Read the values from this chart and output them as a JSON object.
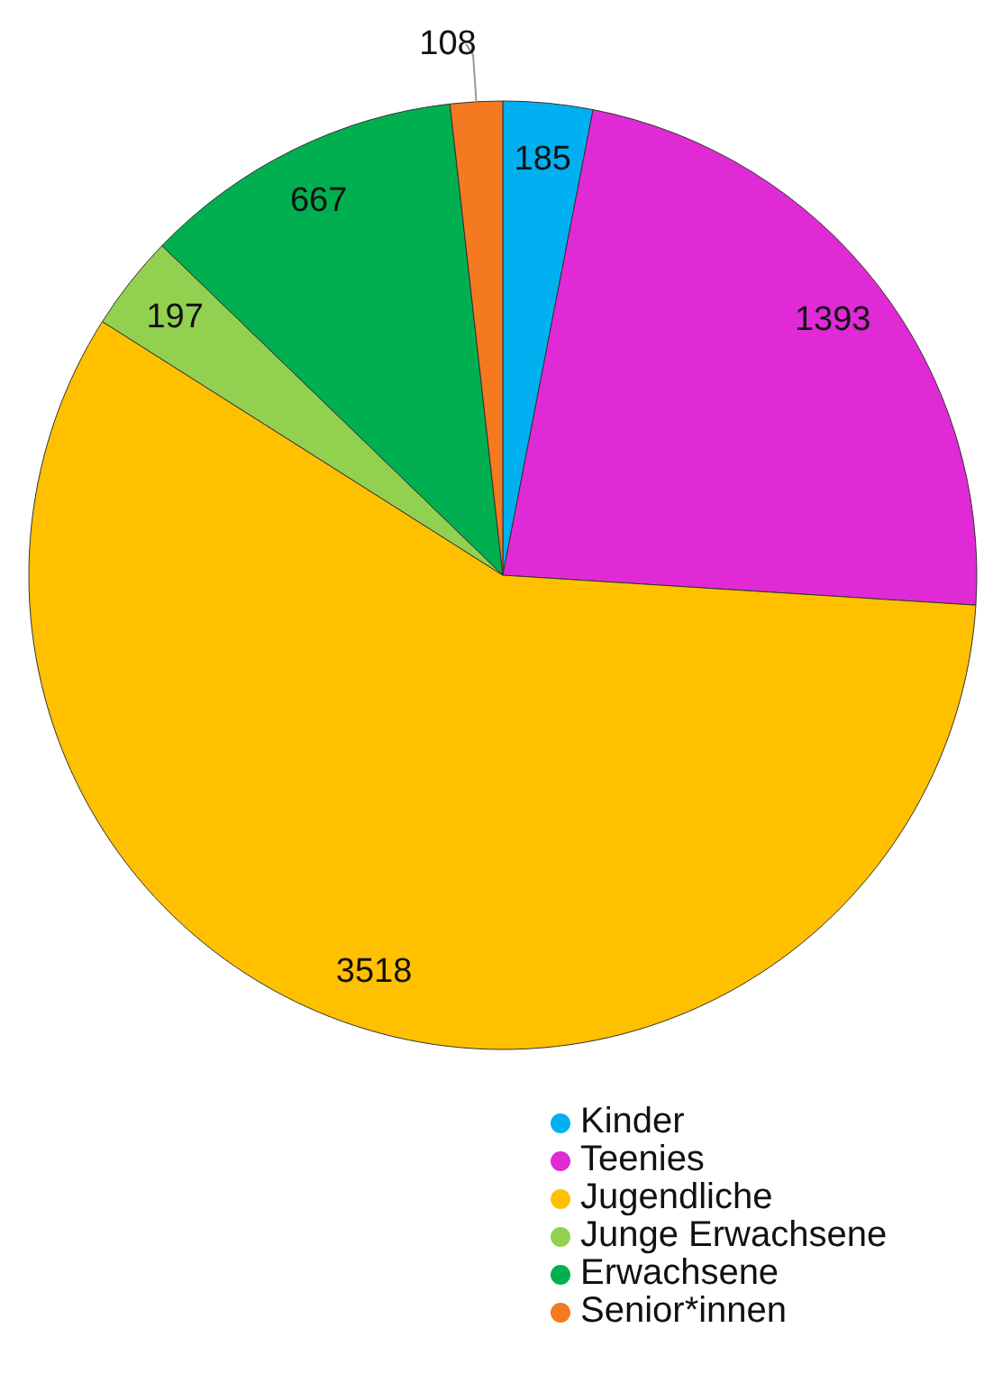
{
  "chart_data": {
    "type": "pie",
    "categories": [
      "Kinder",
      "Teenies",
      "Jugendliche",
      "Junge Erwachsene",
      "Erwachsene",
      "Senior*innen"
    ],
    "values": [
      185,
      1393,
      3518,
      197,
      667,
      108
    ],
    "colors": [
      "#00b0f0",
      "#e02ad6",
      "#ffc000",
      "#92d050",
      "#00b050",
      "#f47920"
    ],
    "data_labels": true,
    "legend": "bottom"
  }
}
